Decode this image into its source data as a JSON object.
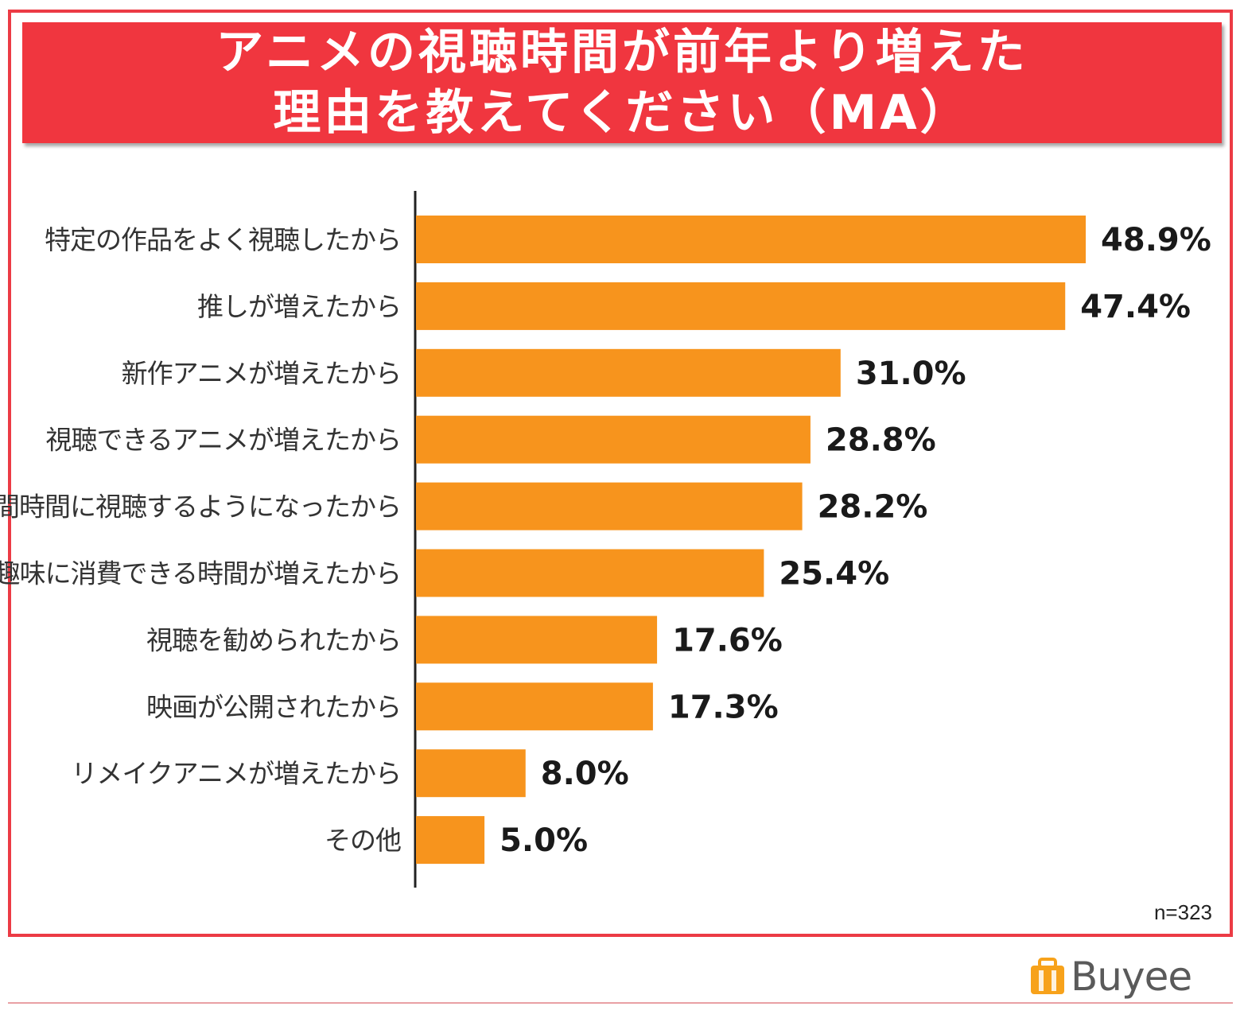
{
  "title": {
    "line1": "アニメの視聴時間が前年より増えた",
    "line2": "理由を教えてください（MA）"
  },
  "sample_size": "n=323",
  "brand": {
    "name": "Buyee",
    "icon": "buyee-logo-icon"
  },
  "colors": {
    "frame": "#ec3b45",
    "title_band": "#f0363f",
    "bar": "#f7941d"
  },
  "chart_data": {
    "type": "bar",
    "orientation": "horizontal",
    "title": "アニメの視聴時間が前年より増えた理由を教えてください（MA）",
    "xlabel": "",
    "ylabel": "",
    "xlim": [
      0,
      50
    ],
    "grid": false,
    "legend": "none",
    "unit": "%",
    "categories": [
      "特定の作品をよく視聴したから",
      "推しが増えたから",
      "新作アニメが増えたから",
      "視聴できるアニメが増えたから",
      "隙間時間に視聴するようになったから",
      "趣味に消費できる時間が増えたから",
      "視聴を勧められたから",
      "映画が公開されたから",
      "リメイクアニメが増えたから",
      "その他"
    ],
    "values": [
      48.9,
      47.4,
      31.0,
      28.8,
      28.2,
      25.4,
      17.6,
      17.3,
      8.0,
      5.0
    ],
    "value_labels": [
      "48.9%",
      "47.4%",
      "31.0%",
      "28.8%",
      "28.2%",
      "25.4%",
      "17.6%",
      "17.3%",
      "8.0%",
      "5.0%"
    ]
  }
}
